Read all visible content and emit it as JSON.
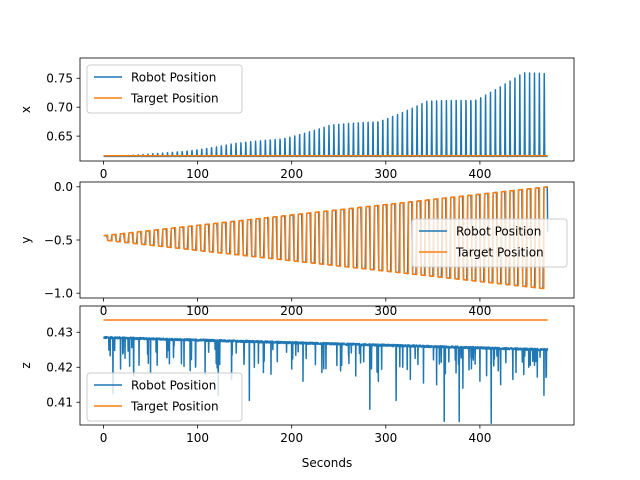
{
  "chart_data": [
    {
      "type": "line",
      "xlabel": "",
      "ylabel": "x",
      "xlim": [
        -25,
        500
      ],
      "ylim": [
        0.607,
        0.785
      ],
      "xticks": [
        0,
        100,
        200,
        300,
        400
      ],
      "xtick_labels": [
        "0",
        "100",
        "200",
        "300",
        "400"
      ],
      "yticks": [
        0.65,
        0.7,
        0.75
      ],
      "ytick_labels": [
        "0.65",
        "0.70",
        "0.75"
      ],
      "legend_position": "upper-left",
      "series": [
        {
          "name": "Robot Position",
          "color": "#1f77b4",
          "summary": {
            "t_start": 0,
            "t_end": 472,
            "baseline": 0.615,
            "amplitude_start": 0.0,
            "amplitude_end": 0.158,
            "period_s": 5.2,
            "peak_start": 0.615,
            "peak_end": 0.773
          }
        },
        {
          "name": "Target Position",
          "color": "#ff7f0e",
          "summary": {
            "t_start": 0,
            "t_end": 472,
            "value": 0.616
          }
        }
      ]
    },
    {
      "type": "line",
      "xlabel": "",
      "ylabel": "y",
      "xlim": [
        -25,
        500
      ],
      "ylim": [
        -1.045,
        0.045
      ],
      "xticks": [
        0,
        100,
        200,
        300,
        400
      ],
      "xtick_labels": [
        "0",
        "100",
        "200",
        "300",
        "400"
      ],
      "yticks": [
        -1.0,
        -0.5,
        0.0
      ],
      "ytick_labels": [
        "−1.0",
        "−0.5",
        "0.0"
      ],
      "legend_position": "center-right",
      "series": [
        {
          "name": "Robot Position",
          "color": "#1f77b4",
          "summary": {
            "t_start": 0,
            "t_end": 472,
            "center": -0.48,
            "high_start": -0.46,
            "high_end": 0.0,
            "low_start": -0.5,
            "low_end": -0.96,
            "period_s": 9.0
          }
        },
        {
          "name": "Target Position",
          "color": "#ff7f0e",
          "summary": {
            "t_start": 0,
            "t_end": 472,
            "center": -0.48,
            "high_start": -0.46,
            "high_end": 0.0,
            "low_start": -0.5,
            "low_end": -0.96,
            "period_s": 9.0
          }
        }
      ]
    },
    {
      "type": "line",
      "xlabel": "Seconds",
      "ylabel": "z",
      "xlim": [
        -25,
        500
      ],
      "ylim": [
        0.4035,
        0.4375
      ],
      "xticks": [
        0,
        100,
        200,
        300,
        400
      ],
      "xtick_labels": [
        "0",
        "100",
        "200",
        "300",
        "400"
      ],
      "yticks": [
        0.41,
        0.42,
        0.43
      ],
      "ytick_labels": [
        "0.41",
        "0.42",
        "0.43"
      ],
      "legend_position": "lower-left",
      "series": [
        {
          "name": "Robot Position",
          "color": "#1f77b4",
          "summary": {
            "t_start": 0,
            "t_end": 472,
            "baseline_start": 0.4285,
            "baseline_end": 0.425,
            "dips_down_to": 0.404
          }
        },
        {
          "name": "Target Position",
          "color": "#ff7f0e",
          "summary": {
            "t_start": 0,
            "t_end": 472,
            "value": 0.4335
          }
        }
      ]
    }
  ]
}
